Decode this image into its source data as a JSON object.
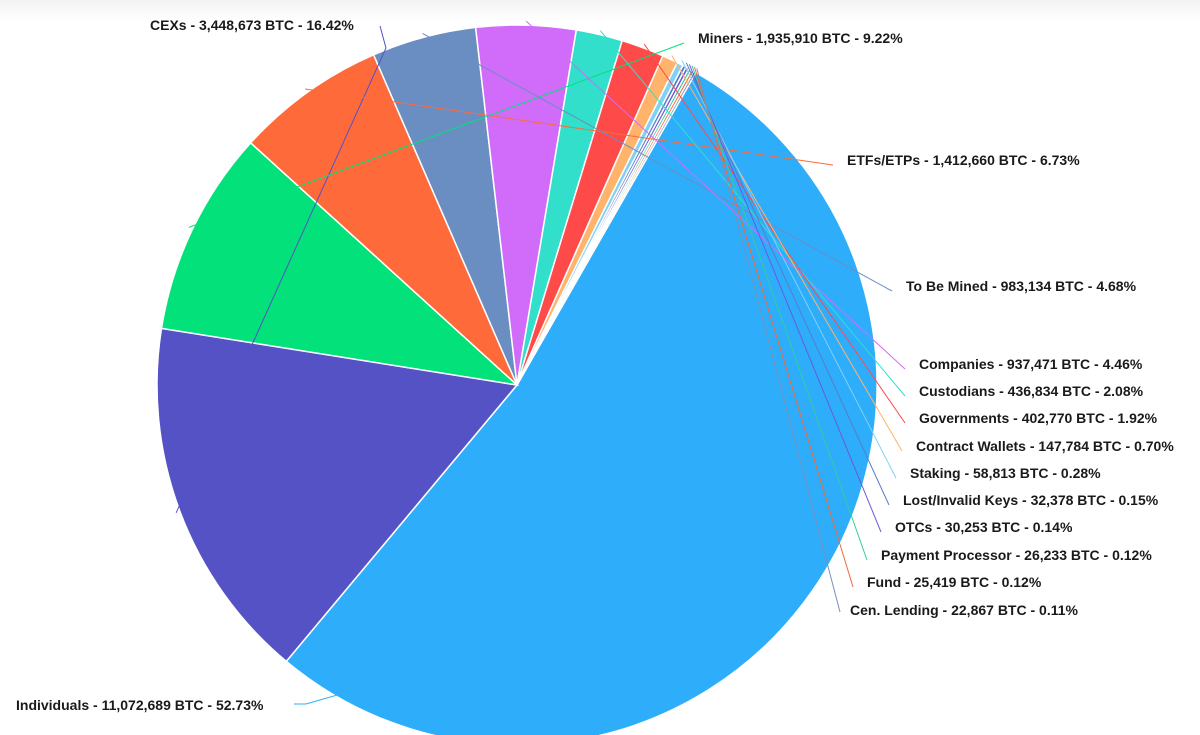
{
  "chart_data": {
    "type": "pie",
    "title": "",
    "slices": [
      {
        "name": "Individuals",
        "value": 11072689,
        "percent": 52.73,
        "label": "Individuals - 11,072,689 BTC - 52.73%",
        "color": "#2EADFB"
      },
      {
        "name": "CEXs",
        "value": 3448673,
        "percent": 16.42,
        "label": "CEXs - 3,448,673 BTC - 16.42%",
        "color": "#5552C6"
      },
      {
        "name": "Miners",
        "value": 1935910,
        "percent": 9.22,
        "label": "Miners - 1,935,910 BTC - 9.22%",
        "color": "#03E17A"
      },
      {
        "name": "ETFs/ETPs",
        "value": 1412660,
        "percent": 6.73,
        "label": "ETFs/ETPs - 1,412,660 BTC - 6.73%",
        "color": "#FF6A3A"
      },
      {
        "name": "To Be Mined",
        "value": 983134,
        "percent": 4.68,
        "label": "To Be Mined - 983,134 BTC - 4.68%",
        "color": "#6A8EC2"
      },
      {
        "name": "Companies",
        "value": 937471,
        "percent": 4.46,
        "label": "Companies - 937,471 BTC - 4.46%",
        "color": "#D16BFA"
      },
      {
        "name": "Custodians",
        "value": 436834,
        "percent": 2.08,
        "label": "Custodians - 436,834 BTC - 2.08%",
        "color": "#31DFCB"
      },
      {
        "name": "Governments",
        "value": 402770,
        "percent": 1.92,
        "label": "Governments - 402,770 BTC - 1.92%",
        "color": "#FF4A4A"
      },
      {
        "name": "Contract Wallets",
        "value": 147784,
        "percent": 0.7,
        "label": "Contract Wallets - 147,784 BTC - 0.70%",
        "color": "#FFB36B"
      },
      {
        "name": "Staking",
        "value": 58813,
        "percent": 0.28,
        "label": "Staking - 58,813 BTC - 0.28%",
        "color": "#7FD2F5"
      },
      {
        "name": "Lost/Invalid Keys",
        "value": 32378,
        "percent": 0.15,
        "label": "Lost/Invalid Keys - 32,378 BTC - 0.15%",
        "color": "#5A7CC8"
      },
      {
        "name": "OTCs",
        "value": 30253,
        "percent": 0.14,
        "label": "OTCs - 30,253 BTC - 0.14%",
        "color": "#6D5AD6"
      },
      {
        "name": "Payment Processor",
        "value": 26233,
        "percent": 0.12,
        "label": "Payment Processor - 26,233 BTC - 0.12%",
        "color": "#33CC99"
      },
      {
        "name": "Fund",
        "value": 25419,
        "percent": 0.12,
        "label": "Fund - 25,419 BTC - 0.12%",
        "color": "#F2683A"
      },
      {
        "name": "Cen. Lending",
        "value": 22867,
        "percent": 0.11,
        "label": "Cen. Lending - 22,867 BTC - 0.11%",
        "color": "#7A90B8"
      }
    ],
    "watermark_color": "#F7B18A"
  }
}
